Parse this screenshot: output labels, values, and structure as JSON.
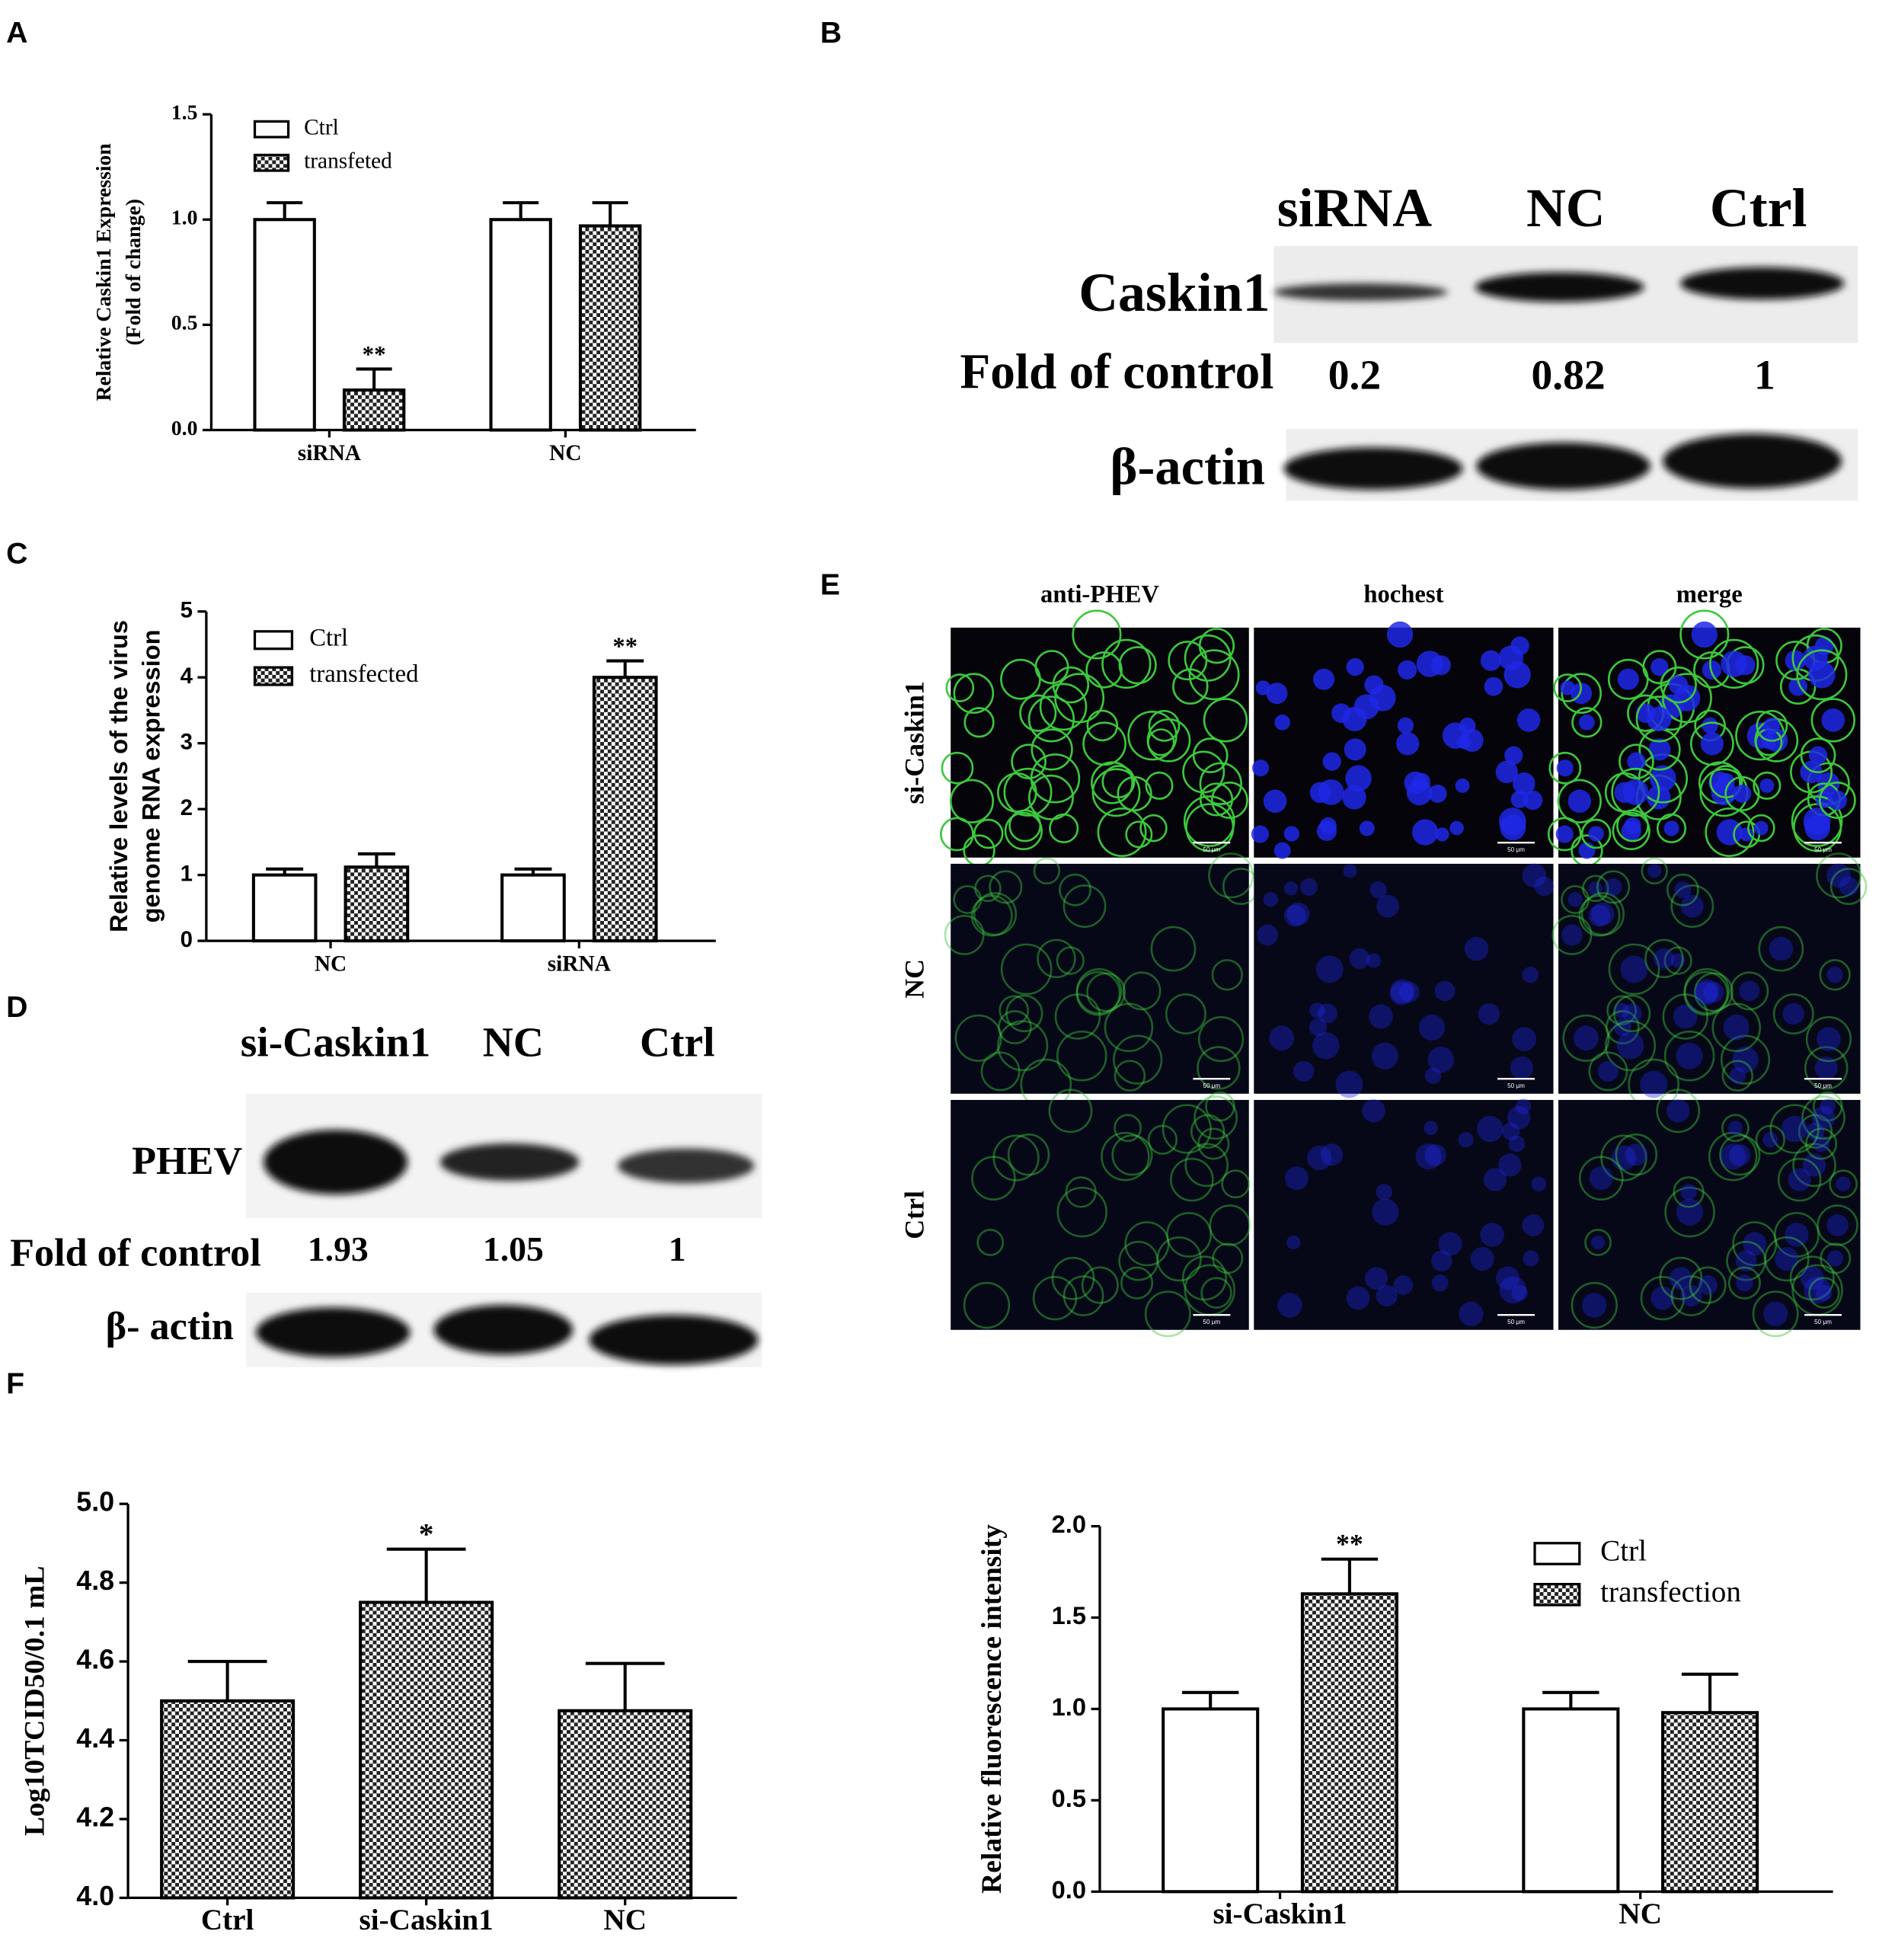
{
  "panels": [
    "A",
    "B",
    "C",
    "D",
    "E",
    "F"
  ],
  "chart_data": [
    {
      "type": "bar",
      "ylabel": [
        "Relative Caskin1 Expression",
        "(Fold of change)"
      ],
      "categories": [
        "siRNA",
        "NC"
      ],
      "series": [
        {
          "name": "Ctrl",
          "color": "#ffffff",
          "values": [
            1.0,
            1.0
          ],
          "errors": [
            0.08,
            0.08
          ],
          "significance": [
            null,
            null
          ]
        },
        {
          "name": "transfeted",
          "color": "hatch",
          "values": [
            0.19,
            0.97
          ],
          "errors": [
            0.1,
            0.11
          ],
          "significance": [
            "**",
            null
          ]
        }
      ],
      "ylim": [
        0,
        1.5
      ],
      "yticks": [
        {
          "value": 0,
          "label": "0.0"
        },
        0.5,
        {
          "value": 1,
          "label": "1.0"
        },
        1.5
      ]
    },
    {
      "type": "bar",
      "ylabel": [
        "Relative levels of the virus",
        "genome RNA expression"
      ],
      "categories": [
        "NC",
        "siRNA"
      ],
      "series": [
        {
          "name": "Ctrl",
          "color": "#ffffff",
          "values": [
            1.0,
            1.0
          ],
          "errors": [
            0.09,
            0.09
          ],
          "significance": [
            null,
            null
          ]
        },
        {
          "name": "transfected",
          "color": "hatch",
          "values": [
            1.12,
            4.0
          ],
          "errors": [
            0.2,
            0.25
          ],
          "significance": [
            null,
            "**"
          ]
        }
      ],
      "ylim": [
        0,
        5
      ],
      "yticks": [
        0,
        1,
        2,
        3,
        4,
        5
      ]
    },
    {
      "type": "bar",
      "ylabel": [
        "Log10TCID50/0.1 mL"
      ],
      "categories": [
        "Ctrl",
        "si-Caskin1",
        "NC"
      ],
      "series": [
        {
          "color": "hatch",
          "values": [
            4.5,
            4.75,
            4.475
          ],
          "errors": [
            0.1,
            0.135,
            0.12
          ],
          "significance": [
            null,
            "*",
            null
          ]
        }
      ],
      "ylim": [
        4.0,
        5.0
      ],
      "yticks": [
        {
          "value": 4,
          "label": "4.0"
        },
        4.2,
        4.4,
        4.6,
        4.8,
        {
          "value": 5,
          "label": "5.0"
        }
      ]
    },
    {
      "type": "bar",
      "ylabel": [
        "Relative fluorescence intensity"
      ],
      "categories": [
        "si-Caskin1",
        "NC"
      ],
      "series": [
        {
          "name": "Ctrl",
          "color": "#ffffff",
          "values": [
            1.0,
            1.0
          ],
          "errors": [
            0.09,
            0.09
          ],
          "significance": [
            null,
            null
          ]
        },
        {
          "name": "transfection",
          "color": "hatch",
          "values": [
            1.63,
            0.98
          ],
          "errors": [
            0.19,
            0.21
          ],
          "significance": [
            "**",
            null
          ]
        }
      ],
      "ylim": [
        0,
        2
      ],
      "yticks": [
        {
          "value": 0,
          "label": "0.0"
        },
        0.5,
        {
          "value": 1,
          "label": "1.0"
        },
        1.5,
        {
          "value": 2,
          "label": "2.0"
        }
      ]
    }
  ],
  "blot_b": {
    "lanes": [
      "siRNA",
      "NC",
      "Ctrl"
    ],
    "protein": "Caskin1",
    "fold_label": "Fold of control",
    "fold": [
      0.2,
      0.82,
      1
    ],
    "loading": "β-actin"
  },
  "blot_d": {
    "lanes": [
      "si-Caskin1",
      "NC",
      "Ctrl"
    ],
    "protein": "PHEV",
    "fold_label": "Fold of control",
    "fold": [
      1.93,
      1.05,
      1
    ],
    "loading": "β- actin"
  },
  "imaging_e": {
    "columns": [
      "anti-PHEV",
      "hochest",
      "merge"
    ],
    "rows": [
      "si-Caskin1",
      "NC",
      "Ctrl"
    ],
    "scale_bar": "50 μm"
  }
}
